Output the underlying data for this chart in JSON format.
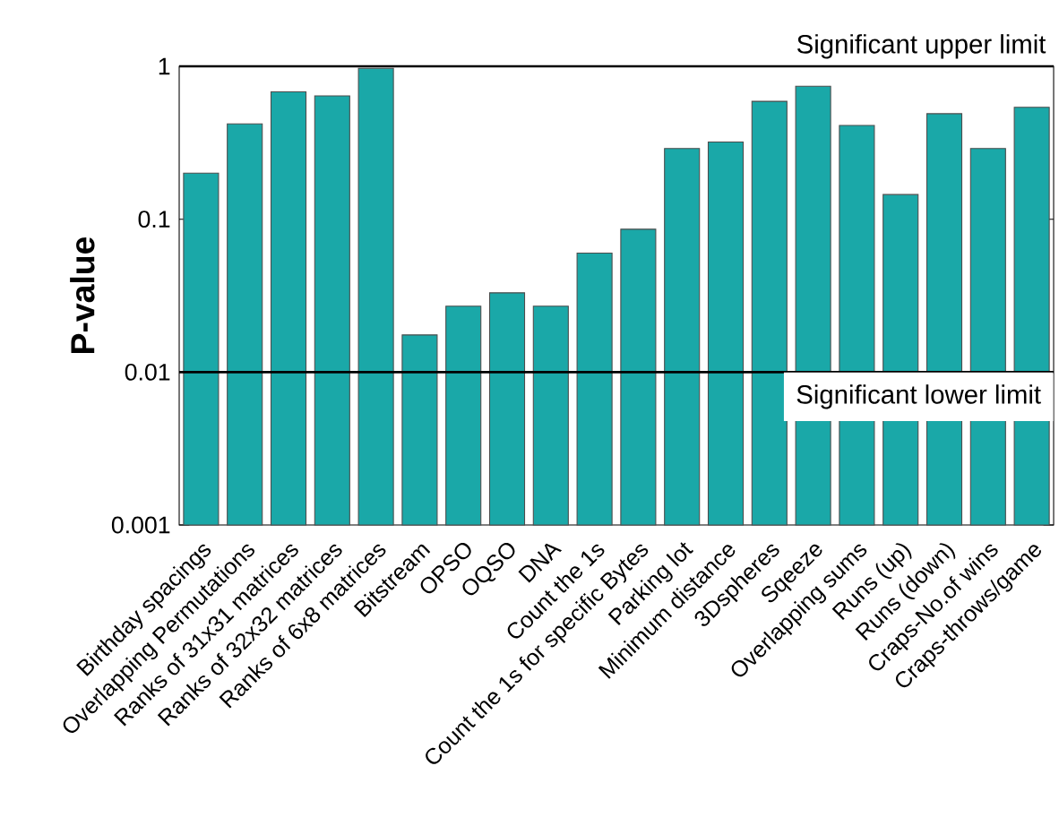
{
  "chart_data": {
    "type": "bar",
    "ylabel": "P-value",
    "categories": [
      "Birthday spacings",
      "Overlapping Permutations",
      "Ranks of 31x31 matrices",
      "Ranks of 32x32 matrices",
      "Ranks of 6x8 matrices",
      "Bitstream",
      "OPSO",
      "OQSO",
      "DNA",
      "Count the 1s",
      "Count the 1s for specific Bytes",
      "Parking lot",
      "Minimum distance",
      "3Dspheres",
      "Sqeeze",
      "Overlapping sums",
      "Runs (up)",
      "Runs (down)",
      "Craps-No.of wins",
      "Craps-throws/game"
    ],
    "values": [
      0.2,
      0.42,
      0.68,
      0.64,
      0.97,
      0.0175,
      0.027,
      0.033,
      0.027,
      0.06,
      0.086,
      0.29,
      0.32,
      0.59,
      0.74,
      0.41,
      0.145,
      0.49,
      0.29,
      0.54
    ],
    "color": "#1aa8a8",
    "log": "y",
    "ylim": [
      0.001,
      1
    ],
    "yticks": [
      0.001,
      0.01,
      0.1,
      1
    ],
    "ref_lines": [
      {
        "axis": "y",
        "value": 1,
        "label": "Significant upper limit",
        "color": "#000000"
      },
      {
        "axis": "y",
        "value": 0.01,
        "label": "Significant lower limit",
        "color": "#000000"
      }
    ]
  }
}
